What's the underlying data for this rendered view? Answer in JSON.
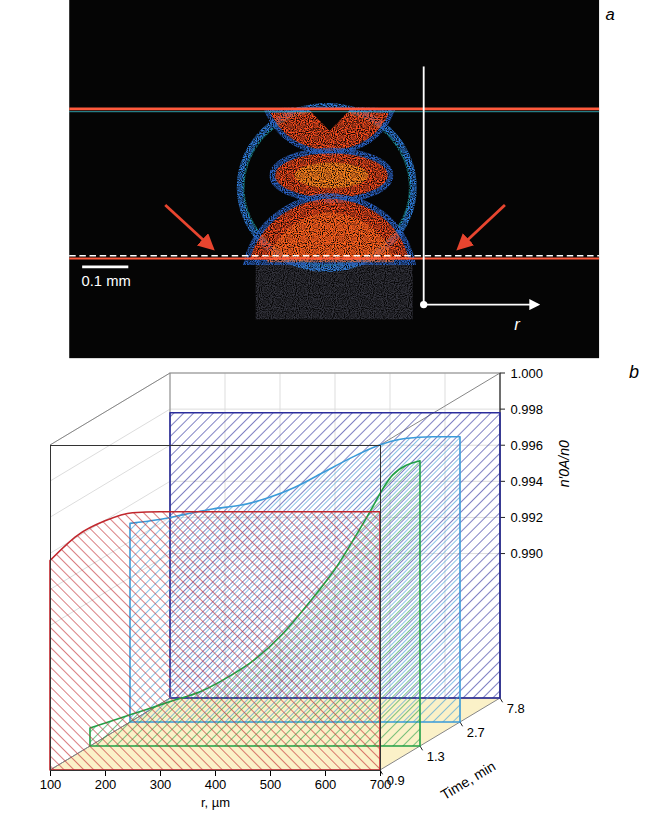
{
  "image_panel": {
    "panel": "a",
    "scale_bar": "0.1 mm",
    "axis_label": "r"
  },
  "chart_data": {
    "type": "area",
    "panel": "b",
    "x_label": "r, µm",
    "y_label": "n′0A/n0",
    "depth_label": "Time, min",
    "x": [
      100,
      150,
      200,
      250,
      300,
      350,
      400,
      450,
      500,
      550,
      600,
      650,
      700
    ],
    "series": [
      {
        "name": "0.9",
        "color": "#c1272d",
        "values": [
          0.9936,
          0.995,
          0.9958,
          0.99625,
          0.9963,
          0.9963,
          0.9963,
          0.9963,
          0.9963,
          0.9963,
          0.9963,
          0.9963,
          0.9963
        ]
      },
      {
        "name": "1.3",
        "color": "#22a046",
        "values": [
          0.983,
          0.9835,
          0.984,
          0.9845,
          0.985,
          0.9858,
          0.9868,
          0.9882,
          0.99,
          0.992,
          0.9945,
          0.997,
          0.9978
        ]
      },
      {
        "name": "2.7",
        "color": "#3a9ad9",
        "values": [
          0.993,
          0.9932,
          0.9935,
          0.9938,
          0.994,
          0.9944,
          0.995,
          0.9958,
          0.9966,
          0.9973,
          0.9977,
          0.9978,
          0.9978
        ]
      },
      {
        "name": "7.8",
        "color": "#2b2d9c",
        "values": [
          0.9978,
          0.9978,
          0.9978,
          0.9978,
          0.9978,
          0.9978,
          0.9978,
          0.9978,
          0.9978,
          0.9978,
          0.9978,
          0.9978,
          0.9978
        ]
      }
    ],
    "xlim": [
      100,
      700
    ],
    "xticks": [
      100,
      200,
      300,
      400,
      500,
      600,
      700
    ],
    "ylim": [
      0.982,
      1.0
    ],
    "yticks": [
      {
        "value": 0.99,
        "label": "0.990"
      },
      0.992,
      0.994,
      0.996,
      0.998,
      {
        "value": 1,
        "label": "1.000"
      }
    ],
    "grid": true
  }
}
